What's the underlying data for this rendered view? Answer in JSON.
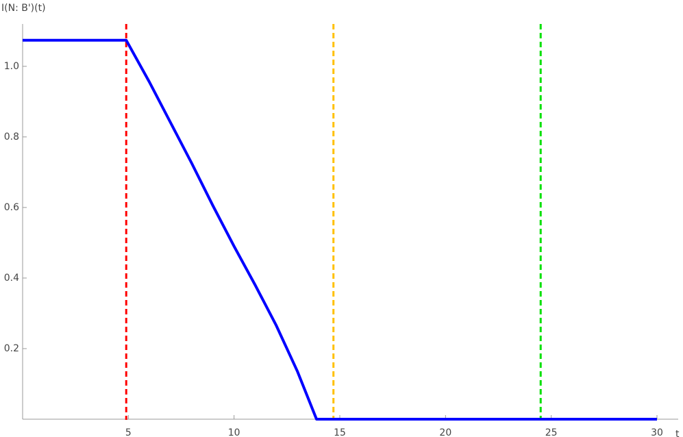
{
  "chart_data": {
    "type": "line",
    "y_label": "I(N: B')(t)",
    "x_label": "t",
    "x": [
      0,
      4.9,
      6,
      7,
      8,
      9,
      10,
      11,
      12,
      13,
      13.5,
      13.9,
      30
    ],
    "series": [
      {
        "color": "#0000ff",
        "values": [
          1.074,
          1.074,
          0.955,
          0.84,
          0.725,
          0.605,
          0.49,
          0.38,
          0.265,
          0.135,
          0.06,
          0,
          0
        ]
      }
    ],
    "vlines": [
      {
        "x": 4.9,
        "color": "#ff0000"
      },
      {
        "x": 14.7,
        "color": "#ffc000"
      },
      {
        "x": 24.5,
        "color": "#00e000"
      }
    ],
    "xlim": [
      0,
      30
    ],
    "ylim": [
      0,
      1.12
    ],
    "xticks": [
      5,
      10,
      15,
      20,
      25,
      30
    ],
    "yticks": [
      0.2,
      0.4,
      0.6,
      0.8,
      {
        "value": 1,
        "label": "1.0"
      }
    ]
  }
}
